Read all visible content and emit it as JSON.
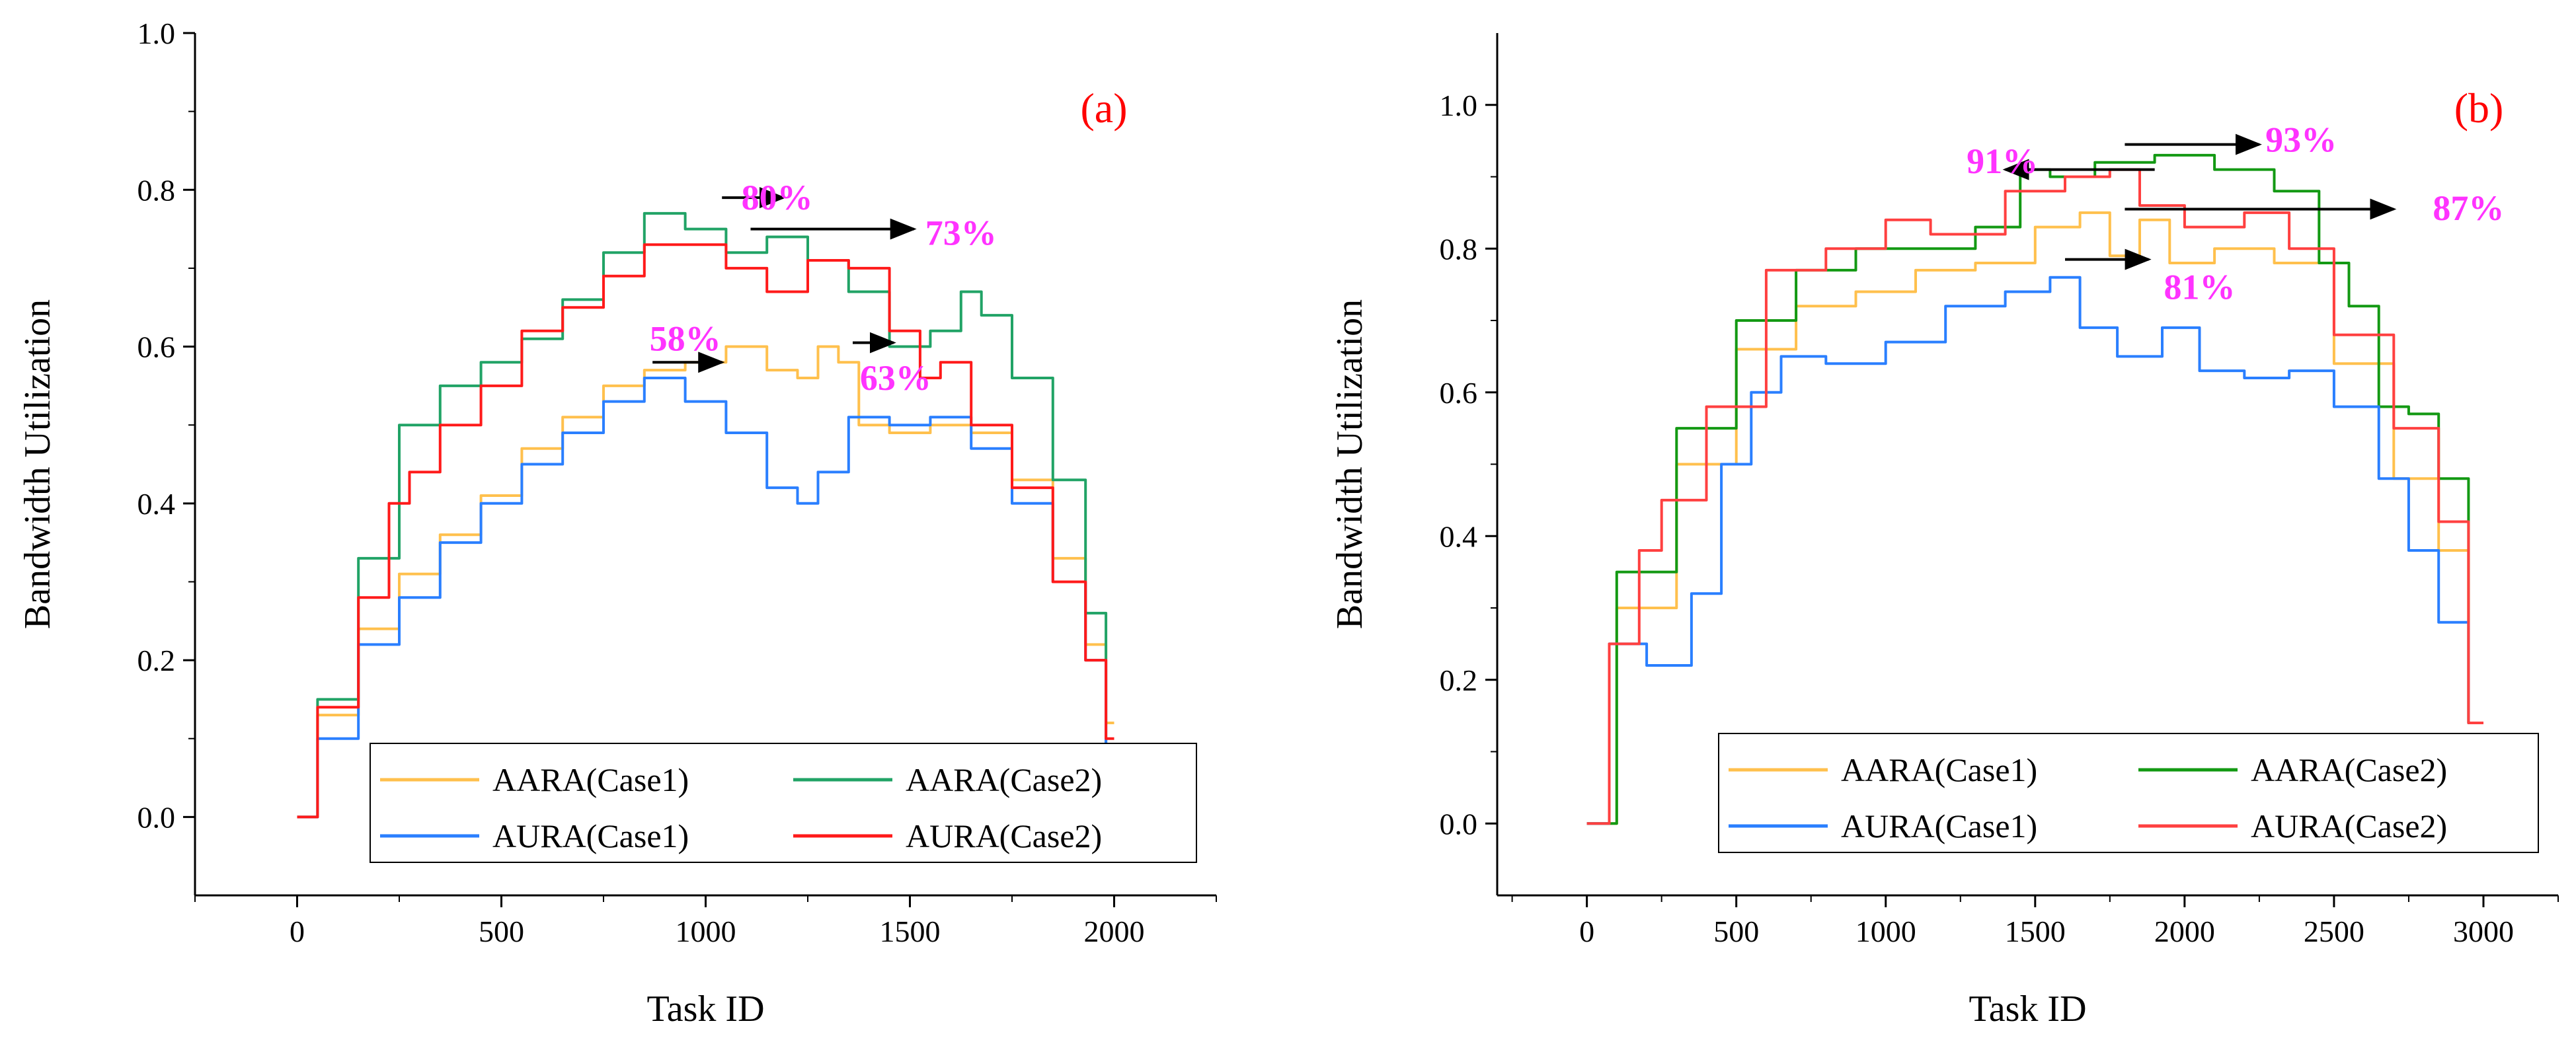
{
  "chart_data": [
    {
      "type": "line",
      "panel_label": "(a)",
      "xlabel": "Task ID",
      "ylabel": "Bandwidth Utilization",
      "xlim": [
        -250,
        2250
      ],
      "ylim": [
        -0.1,
        1.0
      ],
      "xticks": [
        0,
        500,
        1000,
        1500,
        2000
      ],
      "xtick_labels": [
        "0",
        "500",
        "1000",
        "1500",
        "2000"
      ],
      "yticks": [
        0.0,
        0.2,
        0.4,
        0.6,
        0.8,
        1.0
      ],
      "ytick_labels": [
        "0.0",
        "0.2",
        "0.4",
        "0.6",
        "0.8",
        "1.0"
      ],
      "grid": false,
      "legend_position": "bottom-center",
      "series": [
        {
          "name": "AARA(Case1)",
          "color": "#ffc04d",
          "points": [
            [
              0,
              0.0
            ],
            [
              100,
              0.13
            ],
            [
              200,
              0.24
            ],
            [
              300,
              0.31
            ],
            [
              400,
              0.36
            ],
            [
              500,
              0.41
            ],
            [
              600,
              0.47
            ],
            [
              700,
              0.51
            ],
            [
              800,
              0.55
            ],
            [
              900,
              0.57
            ],
            [
              1000,
              0.58
            ],
            [
              1100,
              0.6
            ],
            [
              1200,
              0.57
            ],
            [
              1250,
              0.56
            ],
            [
              1300,
              0.6
            ],
            [
              1350,
              0.58
            ],
            [
              1400,
              0.5
            ],
            [
              1500,
              0.49
            ],
            [
              1600,
              0.5
            ],
            [
              1700,
              0.49
            ],
            [
              1800,
              0.43
            ],
            [
              1900,
              0.33
            ],
            [
              1960,
              0.22
            ],
            [
              2000,
              0.12
            ]
          ]
        },
        {
          "name": "AARA(Case2)",
          "color": "#21a366",
          "points": [
            [
              0,
              0.0
            ],
            [
              100,
              0.15
            ],
            [
              200,
              0.33
            ],
            [
              300,
              0.5
            ],
            [
              400,
              0.55
            ],
            [
              500,
              0.58
            ],
            [
              600,
              0.61
            ],
            [
              700,
              0.66
            ],
            [
              800,
              0.72
            ],
            [
              900,
              0.77
            ],
            [
              1000,
              0.75
            ],
            [
              1100,
              0.72
            ],
            [
              1200,
              0.74
            ],
            [
              1300,
              0.71
            ],
            [
              1400,
              0.67
            ],
            [
              1500,
              0.6
            ],
            [
              1600,
              0.62
            ],
            [
              1650,
              0.67
            ],
            [
              1700,
              0.64
            ],
            [
              1800,
              0.56
            ],
            [
              1900,
              0.43
            ],
            [
              1960,
              0.26
            ],
            [
              2000,
              0.08
            ]
          ]
        },
        {
          "name": "AURA(Case1)",
          "color": "#2a7fff",
          "points": [
            [
              0,
              0.0
            ],
            [
              100,
              0.1
            ],
            [
              200,
              0.22
            ],
            [
              300,
              0.28
            ],
            [
              400,
              0.35
            ],
            [
              500,
              0.4
            ],
            [
              600,
              0.45
            ],
            [
              700,
              0.49
            ],
            [
              800,
              0.53
            ],
            [
              900,
              0.56
            ],
            [
              1000,
              0.53
            ],
            [
              1100,
              0.49
            ],
            [
              1200,
              0.42
            ],
            [
              1250,
              0.4
            ],
            [
              1300,
              0.44
            ],
            [
              1400,
              0.51
            ],
            [
              1500,
              0.5
            ],
            [
              1600,
              0.51
            ],
            [
              1700,
              0.47
            ],
            [
              1800,
              0.4
            ],
            [
              1900,
              0.3
            ],
            [
              1960,
              0.2
            ],
            [
              2000,
              0.08
            ]
          ]
        },
        {
          "name": "AURA(Case2)",
          "color": "#ff1a1a",
          "points": [
            [
              0,
              0.0
            ],
            [
              100,
              0.14
            ],
            [
              200,
              0.28
            ],
            [
              250,
              0.4
            ],
            [
              300,
              0.44
            ],
            [
              400,
              0.5
            ],
            [
              500,
              0.55
            ],
            [
              600,
              0.62
            ],
            [
              700,
              0.65
            ],
            [
              800,
              0.69
            ],
            [
              900,
              0.73
            ],
            [
              1000,
              0.73
            ],
            [
              1100,
              0.7
            ],
            [
              1200,
              0.67
            ],
            [
              1300,
              0.71
            ],
            [
              1400,
              0.7
            ],
            [
              1500,
              0.62
            ],
            [
              1550,
              0.56
            ],
            [
              1600,
              0.58
            ],
            [
              1700,
              0.5
            ],
            [
              1800,
              0.42
            ],
            [
              1900,
              0.3
            ],
            [
              1960,
              0.2
            ],
            [
              2000,
              0.1
            ]
          ]
        }
      ],
      "annotations": [
        {
          "text": "58%",
          "x": 950,
          "y": 0.595
        },
        {
          "text": "80%",
          "x": 1175,
          "y": 0.775
        },
        {
          "text": "73%",
          "x": 1625,
          "y": 0.73
        },
        {
          "text": "63%",
          "x": 1465,
          "y": 0.545
        }
      ],
      "arrows": [
        {
          "from": [
            870,
            0.58
          ],
          "to": [
            1040,
            0.58
          ]
        },
        {
          "from": [
            1040,
            0.79
          ],
          "to": [
            1190,
            0.79
          ]
        },
        {
          "from": [
            1110,
            0.75
          ],
          "to": [
            1510,
            0.75
          ]
        },
        {
          "from": [
            1360,
            0.605
          ],
          "to": [
            1460,
            0.605
          ]
        }
      ],
      "legend": [
        {
          "label": "AARA(Case1)",
          "color": "#ffc04d"
        },
        {
          "label": "AARA(Case2)",
          "color": "#21a366"
        },
        {
          "label": "AURA(Case1)",
          "color": "#2a7fff"
        },
        {
          "label": "AURA(Case2)",
          "color": "#ff1a1a"
        }
      ]
    },
    {
      "type": "line",
      "panel_label": "(b)",
      "xlabel": "Task ID",
      "ylabel": "Bandwidth Utilization",
      "xlim": [
        -300,
        3250
      ],
      "ylim": [
        -0.1,
        1.1
      ],
      "xticks": [
        0,
        500,
        1000,
        1500,
        2000,
        2500,
        3000
      ],
      "xtick_labels": [
        "0",
        "500",
        "1000",
        "1500",
        "2000",
        "2500",
        "3000"
      ],
      "yticks": [
        0.0,
        0.2,
        0.4,
        0.6,
        0.8,
        1.0
      ],
      "ytick_labels": [
        "0.0",
        "0.2",
        "0.4",
        "0.6",
        "0.8",
        "1.0"
      ],
      "grid": false,
      "legend_position": "bottom-center",
      "series": [
        {
          "name": "AARA(Case1)",
          "color": "#ffc04d",
          "points": [
            [
              0,
              0.0
            ],
            [
              200,
              0.3
            ],
            [
              400,
              0.5
            ],
            [
              600,
              0.66
            ],
            [
              800,
              0.72
            ],
            [
              1000,
              0.74
            ],
            [
              1200,
              0.77
            ],
            [
              1400,
              0.78
            ],
            [
              1600,
              0.83
            ],
            [
              1700,
              0.85
            ],
            [
              1800,
              0.79
            ],
            [
              1900,
              0.84
            ],
            [
              2000,
              0.78
            ],
            [
              2200,
              0.8
            ],
            [
              2400,
              0.78
            ],
            [
              2600,
              0.64
            ],
            [
              2800,
              0.48
            ],
            [
              2900,
              0.38
            ],
            [
              3000,
              0.14
            ]
          ]
        },
        {
          "name": "AARA(Case2)",
          "color": "#139913",
          "points": [
            [
              0,
              0.0
            ],
            [
              200,
              0.35
            ],
            [
              400,
              0.55
            ],
            [
              600,
              0.7
            ],
            [
              800,
              0.77
            ],
            [
              1000,
              0.8
            ],
            [
              1200,
              0.8
            ],
            [
              1400,
              0.83
            ],
            [
              1500,
              0.91
            ],
            [
              1600,
              0.9
            ],
            [
              1800,
              0.92
            ],
            [
              2000,
              0.93
            ],
            [
              2200,
              0.91
            ],
            [
              2400,
              0.88
            ],
            [
              2500,
              0.78
            ],
            [
              2600,
              0.72
            ],
            [
              2700,
              0.58
            ],
            [
              2800,
              0.57
            ],
            [
              2900,
              0.48
            ],
            [
              3000,
              0.14
            ]
          ]
        },
        {
          "name": "AURA(Case1)",
          "color": "#2a7fff",
          "points": [
            [
              0,
              0.0
            ],
            [
              150,
              0.25
            ],
            [
              250,
              0.22
            ],
            [
              300,
              0.22
            ],
            [
              400,
              0.32
            ],
            [
              500,
              0.5
            ],
            [
              600,
              0.6
            ],
            [
              700,
              0.65
            ],
            [
              900,
              0.64
            ],
            [
              1100,
              0.67
            ],
            [
              1300,
              0.72
            ],
            [
              1500,
              0.74
            ],
            [
              1600,
              0.76
            ],
            [
              1700,
              0.69
            ],
            [
              1850,
              0.65
            ],
            [
              2000,
              0.69
            ],
            [
              2100,
              0.63
            ],
            [
              2300,
              0.62
            ],
            [
              2400,
              0.63
            ],
            [
              2600,
              0.58
            ],
            [
              2700,
              0.48
            ],
            [
              2800,
              0.38
            ],
            [
              2900,
              0.28
            ],
            [
              3000,
              0.14
            ]
          ]
        },
        {
          "name": "AURA(Case2)",
          "color": "#ff4040",
          "points": [
            [
              0,
              0.0
            ],
            [
              150,
              0.25
            ],
            [
              200,
              0.38
            ],
            [
              300,
              0.45
            ],
            [
              500,
              0.58
            ],
            [
              700,
              0.77
            ],
            [
              900,
              0.8
            ],
            [
              1100,
              0.84
            ],
            [
              1200,
              0.82
            ],
            [
              1300,
              0.82
            ],
            [
              1500,
              0.88
            ],
            [
              1700,
              0.9
            ],
            [
              1800,
              0.91
            ],
            [
              1900,
              0.86
            ],
            [
              2100,
              0.83
            ],
            [
              2300,
              0.85
            ],
            [
              2400,
              0.8
            ],
            [
              2600,
              0.68
            ],
            [
              2800,
              0.55
            ],
            [
              2900,
              0.42
            ],
            [
              3000,
              0.14
            ]
          ]
        }
      ],
      "annotations": [
        {
          "text": "91%",
          "x": 1390,
          "y": 0.905
        },
        {
          "text": "93%",
          "x": 2390,
          "y": 0.935
        },
        {
          "text": "87%",
          "x": 2950,
          "y": 0.84
        },
        {
          "text": "81%",
          "x": 2050,
          "y": 0.73
        }
      ],
      "arrows": [
        {
          "from": [
            1900,
            0.91
          ],
          "to": [
            1400,
            0.91
          ]
        },
        {
          "from": [
            1800,
            0.945
          ],
          "to": [
            2250,
            0.945
          ]
        },
        {
          "from": [
            1800,
            0.855
          ],
          "to": [
            2700,
            0.855
          ]
        },
        {
          "from": [
            1600,
            0.785
          ],
          "to": [
            1880,
            0.785
          ]
        }
      ],
      "legend": [
        {
          "label": "AARA(Case1)",
          "color": "#ffc04d"
        },
        {
          "label": "AARA(Case2)",
          "color": "#139913"
        },
        {
          "label": "AURA(Case1)",
          "color": "#2a7fff"
        },
        {
          "label": "AURA(Case2)",
          "color": "#ff4040"
        }
      ]
    }
  ]
}
